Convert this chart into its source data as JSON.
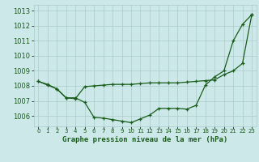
{
  "title": "Graphe pression niveau de la mer (hPa)",
  "bg_color": "#cce8e8",
  "grid_color": "#aacccc",
  "line_color": "#1a5c1a",
  "x_values": [
    0,
    1,
    2,
    3,
    4,
    5,
    6,
    7,
    8,
    9,
    10,
    11,
    12,
    13,
    14,
    15,
    16,
    17,
    18,
    19,
    20,
    21,
    22,
    23
  ],
  "series1": [
    1008.3,
    1008.1,
    1007.8,
    1007.2,
    1007.2,
    1006.9,
    1005.9,
    1005.85,
    1005.75,
    1005.65,
    1005.55,
    1005.8,
    1006.05,
    1006.5,
    1006.5,
    1006.5,
    1006.45,
    1006.7,
    1008.05,
    1008.6,
    1009.0,
    1011.0,
    1012.1,
    1012.75
  ],
  "series2": [
    1008.3,
    1008.05,
    1007.8,
    1007.2,
    1007.15,
    1007.95,
    1008.0,
    1008.05,
    1008.1,
    1008.1,
    1008.1,
    1008.15,
    1008.2,
    1008.2,
    1008.2,
    1008.2,
    1008.25,
    1008.3,
    1008.35,
    1008.4,
    1008.75,
    1009.0,
    1009.5,
    1012.75
  ],
  "ylim": [
    1005.3,
    1013.4
  ],
  "yticks": [
    1006,
    1007,
    1008,
    1009,
    1010,
    1011,
    1012,
    1013
  ],
  "tick_label_color": "#1a5c1a",
  "font_size_ytick": 6,
  "font_size_xtick": 5,
  "font_size_title": 6.5
}
